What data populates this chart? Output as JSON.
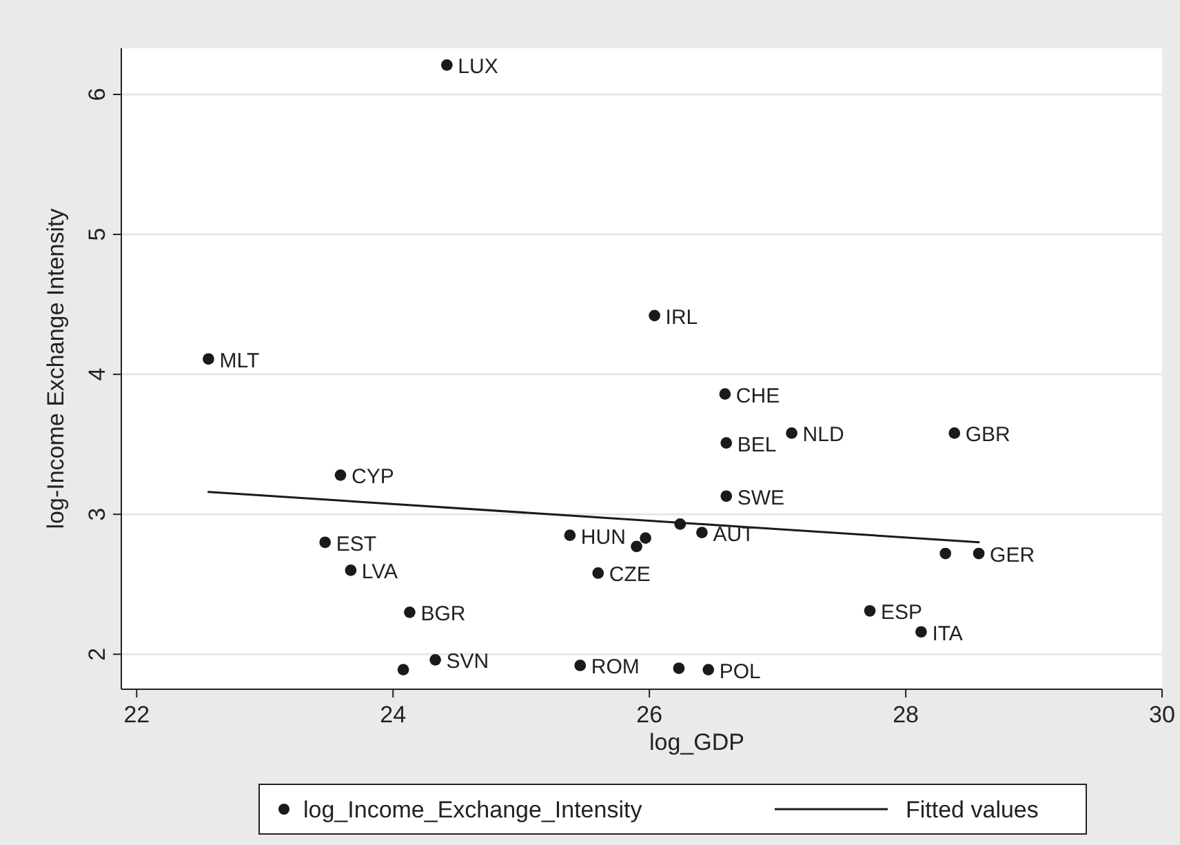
{
  "chart_data": {
    "type": "scatter",
    "xlabel": "log_GDP",
    "ylabel": "log-Income Exchange Intensity",
    "xlim": [
      21.88,
      30.0
    ],
    "ylim": [
      1.75,
      6.33
    ],
    "xticks": [
      22,
      24,
      26,
      28,
      30
    ],
    "yticks": [
      2,
      3,
      4,
      5,
      6
    ],
    "grid": "y",
    "legend": "bottom",
    "marker": "circle",
    "series": [
      {
        "name": "log_Income_Exchange_Intensity",
        "color": "#1a1a1a",
        "x": [
          24.42,
          22.56,
          26.04,
          26.59,
          27.11,
          26.6,
          28.38,
          26.6,
          23.59,
          23.47,
          23.67,
          25.38,
          25.97,
          25.9,
          26.24,
          26.41,
          25.6,
          24.13,
          24.33,
          24.08,
          25.46,
          26.23,
          26.46,
          27.72,
          28.12,
          28.31,
          28.57
        ],
        "values": [
          6.21,
          4.11,
          4.42,
          3.86,
          3.58,
          3.51,
          3.58,
          3.13,
          3.28,
          2.8,
          2.6,
          2.85,
          2.83,
          2.77,
          2.93,
          2.87,
          2.58,
          2.3,
          1.96,
          1.89,
          1.92,
          1.9,
          1.89,
          2.31,
          2.16,
          2.72,
          2.72
        ]
      },
      {
        "name": "Fitted values",
        "type": "line",
        "color": "#1a1a1a",
        "marker": "none",
        "line_style": "solid",
        "x": [
          22.56,
          28.57
        ],
        "values": [
          3.16,
          2.8
        ]
      }
    ],
    "annotations": [
      {
        "text": "LUX",
        "x": 24.42,
        "y": 6.21
      },
      {
        "text": "MLT",
        "x": 22.56,
        "y": 4.11
      },
      {
        "text": "IRL",
        "x": 26.04,
        "y": 4.42
      },
      {
        "text": "CHE",
        "x": 26.59,
        "y": 3.86
      },
      {
        "text": "NLD",
        "x": 27.11,
        "y": 3.58
      },
      {
        "text": "BEL",
        "x": 26.6,
        "y": 3.51
      },
      {
        "text": "GBR",
        "x": 28.38,
        "y": 3.58
      },
      {
        "text": "SWE",
        "x": 26.6,
        "y": 3.13
      },
      {
        "text": "CYP",
        "x": 23.59,
        "y": 3.28
      },
      {
        "text": "EST",
        "x": 23.47,
        "y": 2.8
      },
      {
        "text": "LVA",
        "x": 23.67,
        "y": 2.6
      },
      {
        "text": "HUN",
        "x": 25.38,
        "y": 2.85
      },
      {
        "text": "AUT",
        "x": 26.41,
        "y": 2.87
      },
      {
        "text": "CZE",
        "x": 25.6,
        "y": 2.58
      },
      {
        "text": "BGR",
        "x": 24.13,
        "y": 2.3
      },
      {
        "text": "SVN",
        "x": 24.33,
        "y": 1.96
      },
      {
        "text": "ROM",
        "x": 25.46,
        "y": 1.92
      },
      {
        "text": "POL",
        "x": 26.46,
        "y": 1.89
      },
      {
        "text": "ESP",
        "x": 27.72,
        "y": 2.31
      },
      {
        "text": "ITA",
        "x": 28.12,
        "y": 2.16
      },
      {
        "text": "GER",
        "x": 28.57,
        "y": 2.72
      }
    ]
  }
}
